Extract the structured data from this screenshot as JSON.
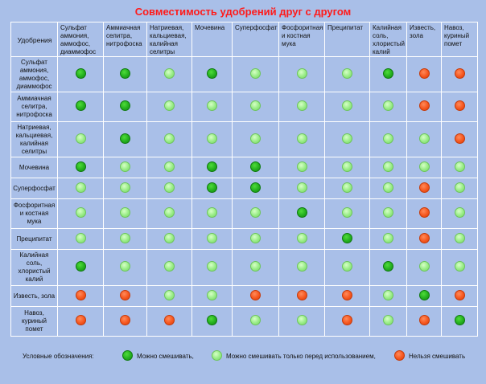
{
  "title": "Совместимость удобрений друг с другом",
  "header": {
    "corner": "Удобрения",
    "columns": [
      "Сульфат аммония, аммофос, диаммофос",
      "Аммиачная селитра, нитрофоска",
      "Натриевая, кальциевая, калийная селитры",
      "Мочевина",
      "Суперфосфат",
      "Фосфоритная и костная мука",
      "Преципитат",
      "Калийная соль, хлористый калий",
      "Известь, зола",
      "Навоз, куриный помет"
    ]
  },
  "rows": [
    {
      "label": "Сульфат аммония, аммофос, диаммофос",
      "cells": [
        "g",
        "g",
        "l",
        "g",
        "l",
        "l",
        "l",
        "g",
        "r",
        "r"
      ]
    },
    {
      "label": "Аммиачная селитра, нитрофоска",
      "cells": [
        "g",
        "g",
        "l",
        "l",
        "l",
        "l",
        "l",
        "l",
        "r",
        "r"
      ]
    },
    {
      "label": "Натриевая, кальциевая, калийная селитры",
      "cells": [
        "l",
        "g",
        "l",
        "l",
        "l",
        "l",
        "l",
        "l",
        "l",
        "r"
      ]
    },
    {
      "label": "Мочевина",
      "cells": [
        "g",
        "l",
        "l",
        "g",
        "g",
        "l",
        "l",
        "l",
        "l",
        "l"
      ]
    },
    {
      "label": "Суперфосфат",
      "cells": [
        "l",
        "l",
        "l",
        "g",
        "g",
        "l",
        "l",
        "l",
        "r",
        "l"
      ]
    },
    {
      "label": "Фосфоритная и костная мука",
      "cells": [
        "l",
        "l",
        "l",
        "l",
        "l",
        "g",
        "l",
        "l",
        "r",
        "l"
      ]
    },
    {
      "label": "Преципитат",
      "cells": [
        "l",
        "l",
        "l",
        "l",
        "l",
        "l",
        "g",
        "l",
        "r",
        "l"
      ]
    },
    {
      "label": "Калийная соль, хлористый калий",
      "cells": [
        "g",
        "l",
        "l",
        "l",
        "l",
        "l",
        "l",
        "g",
        "l",
        "l"
      ]
    },
    {
      "label": "Известь, зола",
      "cells": [
        "r",
        "r",
        "l",
        "l",
        "r",
        "r",
        "r",
        "l",
        "g",
        "r"
      ]
    },
    {
      "label": "Навоз, куриный помет",
      "cells": [
        "r",
        "r",
        "r",
        "g",
        "l",
        "l",
        "r",
        "l",
        "r",
        "g"
      ]
    }
  ],
  "legend": {
    "title": "Условные обозначения:",
    "items": [
      {
        "status": "g",
        "label": "Можно смешивать,"
      },
      {
        "status": "l",
        "label": "Можно смешивать только перед использованием,"
      },
      {
        "status": "r",
        "label": "Нельзя смешивать"
      }
    ]
  },
  "colors": {
    "background": "#a9bfe8",
    "title": "#ff1a1a",
    "mixable": "#24b01e",
    "mix_before_use": "#98ec86",
    "not_mixable": "#f6571f"
  }
}
